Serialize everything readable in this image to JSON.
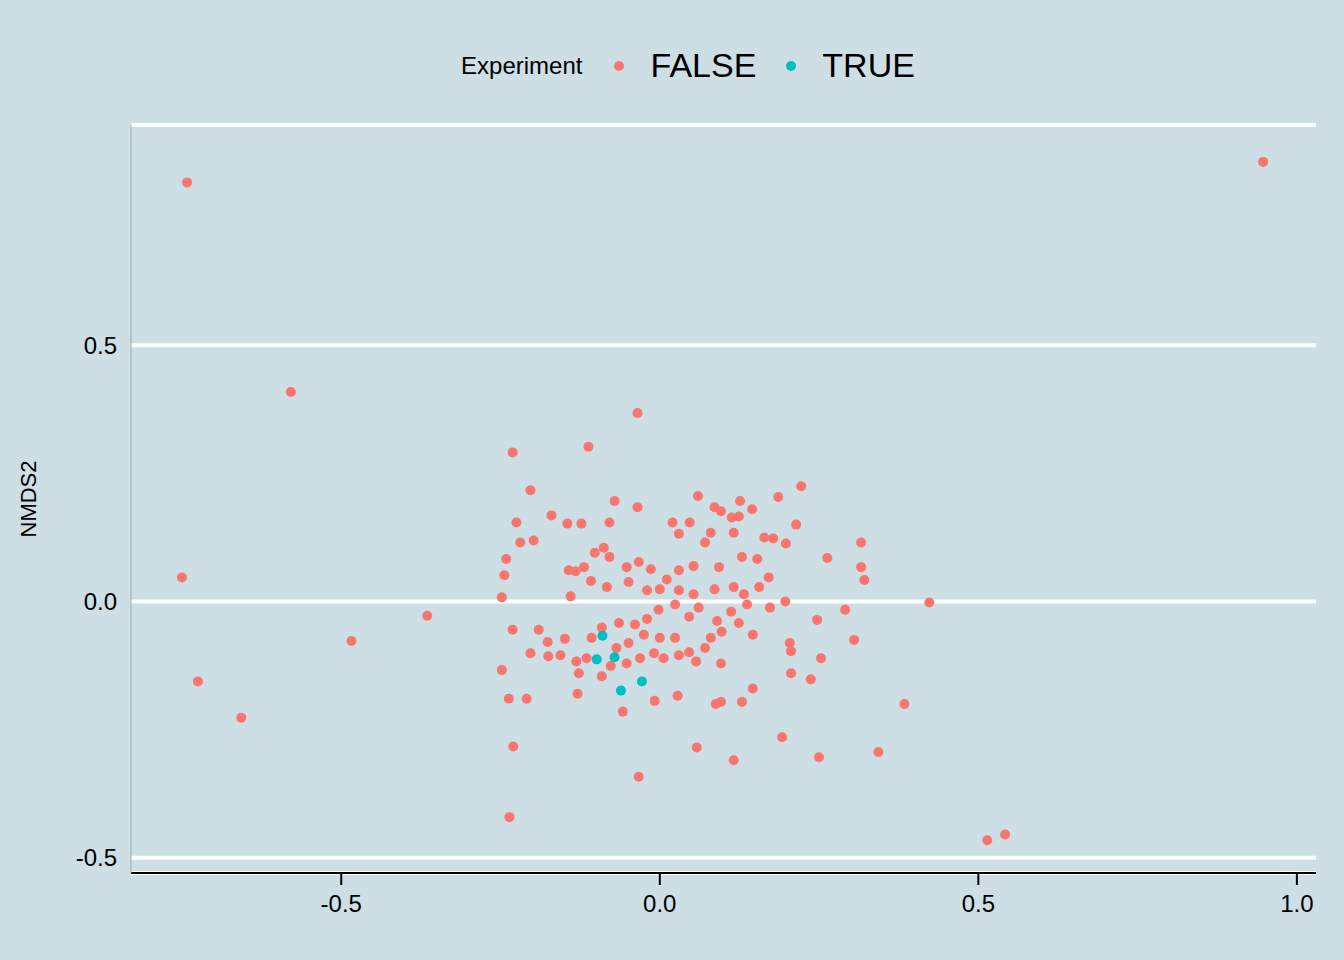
{
  "chart_data": {
    "type": "scatter",
    "ylabel": "NMDS2",
    "legend_title": "Experiment",
    "legend": "top",
    "grid": true,
    "marker": "circle",
    "xlim": [
      -0.83,
      1.03
    ],
    "ylim": [
      -0.53,
      0.93
    ],
    "xticks": [
      -0.5,
      {
        "value": 0,
        "label": "0.0"
      },
      0.5,
      {
        "value": 1,
        "label": "1.0"
      }
    ],
    "yticks": [
      -0.5,
      {
        "value": 0,
        "label": "0.0"
      },
      0.5
    ],
    "series": [
      {
        "name": "FALSE",
        "color": "#F8766D",
        "x": [
          -0.742,
          0.947,
          -0.579,
          -0.75,
          -0.725,
          -0.657,
          -0.484,
          -0.365,
          -0.035,
          -0.231,
          -0.112,
          0.423,
          0.514,
          0.542,
          -0.236,
          -0.033,
          0.384,
          0.343,
          0.25,
          0.116,
          0.192,
          0.058,
          -0.23,
          -0.203,
          0.222,
          0.316,
          0.316,
          0.321,
          0.263,
          0.291,
          0.305,
          0.247,
          0.253,
          0.237,
          0.204,
          0.206,
          0.206,
          0.146,
          0.129,
          0.088,
          0.096,
          0.028,
          -0.008,
          -0.058,
          -0.129,
          -0.237,
          -0.209,
          -0.248,
          -0.231,
          -0.248,
          -0.244,
          -0.241,
          -0.225,
          -0.219,
          -0.198,
          -0.17,
          -0.145,
          -0.123,
          -0.079,
          -0.071,
          -0.035,
          0.02,
          0.047,
          0.06,
          0.086,
          0.096,
          0.126,
          0.145,
          0.186,
          0.214,
          0.198,
          0.178,
          0.164,
          0.124,
          0.113,
          0.071,
          0.03,
          0.08,
          0.116,
          0.153,
          0.129,
          0.093,
          0.053,
          0.03,
          0.011,
          -0.014,
          -0.033,
          -0.052,
          -0.079,
          -0.088,
          -0.102,
          -0.119,
          -0.143,
          -0.132,
          -0.14,
          -0.108,
          -0.083,
          -0.049,
          -0.02,
          0.0,
          0.03,
          0.053,
          0.086,
          0.116,
          0.132,
          0.156,
          0.171,
          0.197,
          0.173,
          0.137,
          0.112,
          0.09,
          0.061,
          0.046,
          0.024,
          -0.002,
          -0.02,
          -0.039,
          -0.064,
          -0.091,
          -0.107,
          -0.149,
          -0.176,
          -0.19,
          -0.203,
          -0.175,
          -0.156,
          -0.131,
          -0.127,
          -0.115,
          -0.091,
          -0.077,
          -0.052,
          -0.031,
          -0.009,
          0.006,
          0.03,
          0.046,
          0.057,
          0.071,
          0.08,
          0.097,
          0.124,
          0.146,
          0.096,
          0.024,
          0.0,
          -0.025,
          -0.049,
          -0.068
        ],
        "y": [
          0.818,
          0.858,
          0.409,
          0.047,
          -0.156,
          -0.227,
          -0.077,
          -0.028,
          0.368,
          0.291,
          0.302,
          -0.002,
          -0.466,
          -0.455,
          -0.421,
          -0.342,
          -0.2,
          -0.294,
          -0.304,
          -0.31,
          -0.265,
          -0.285,
          -0.283,
          0.217,
          0.225,
          0.115,
          0.067,
          0.042,
          0.085,
          -0.016,
          -0.075,
          -0.036,
          -0.111,
          -0.152,
          -0.081,
          -0.097,
          -0.14,
          -0.17,
          -0.196,
          -0.2,
          -0.196,
          -0.184,
          -0.194,
          -0.215,
          -0.18,
          -0.19,
          -0.19,
          -0.134,
          -0.055,
          0.008,
          0.051,
          0.083,
          0.154,
          0.115,
          0.119,
          0.168,
          0.152,
          0.152,
          0.154,
          0.196,
          0.184,
          0.154,
          0.154,
          0.206,
          0.184,
          0.176,
          0.196,
          0.18,
          0.204,
          0.15,
          0.113,
          0.123,
          0.125,
          0.166,
          0.164,
          0.115,
          0.132,
          0.134,
          0.134,
          0.083,
          0.087,
          0.067,
          0.069,
          0.061,
          0.043,
          0.063,
          0.077,
          0.067,
          0.087,
          0.105,
          0.095,
          0.067,
          0.061,
          0.059,
          0.01,
          0.04,
          0.028,
          0.038,
          0.022,
          0.024,
          0.022,
          0.014,
          0.024,
          0.028,
          0.014,
          0.028,
          0.047,
          0.0,
          -0.012,
          -0.006,
          -0.02,
          -0.038,
          -0.012,
          -0.03,
          -0.006,
          -0.016,
          -0.034,
          -0.045,
          -0.042,
          -0.051,
          -0.071,
          -0.073,
          -0.079,
          -0.055,
          -0.101,
          -0.107,
          -0.105,
          -0.117,
          -0.14,
          -0.111,
          -0.146,
          -0.126,
          -0.121,
          -0.111,
          -0.101,
          -0.111,
          -0.105,
          -0.099,
          -0.117,
          -0.091,
          -0.071,
          -0.059,
          -0.042,
          -0.065,
          -0.121,
          -0.071,
          -0.071,
          -0.065,
          -0.081,
          -0.091
        ]
      },
      {
        "name": "TRUE",
        "color": "#00BFC4",
        "x": [
          -0.09,
          -0.099,
          -0.071,
          -0.061,
          -0.028
        ],
        "y": [
          -0.067,
          -0.113,
          -0.109,
          -0.174,
          -0.156
        ]
      }
    ]
  }
}
